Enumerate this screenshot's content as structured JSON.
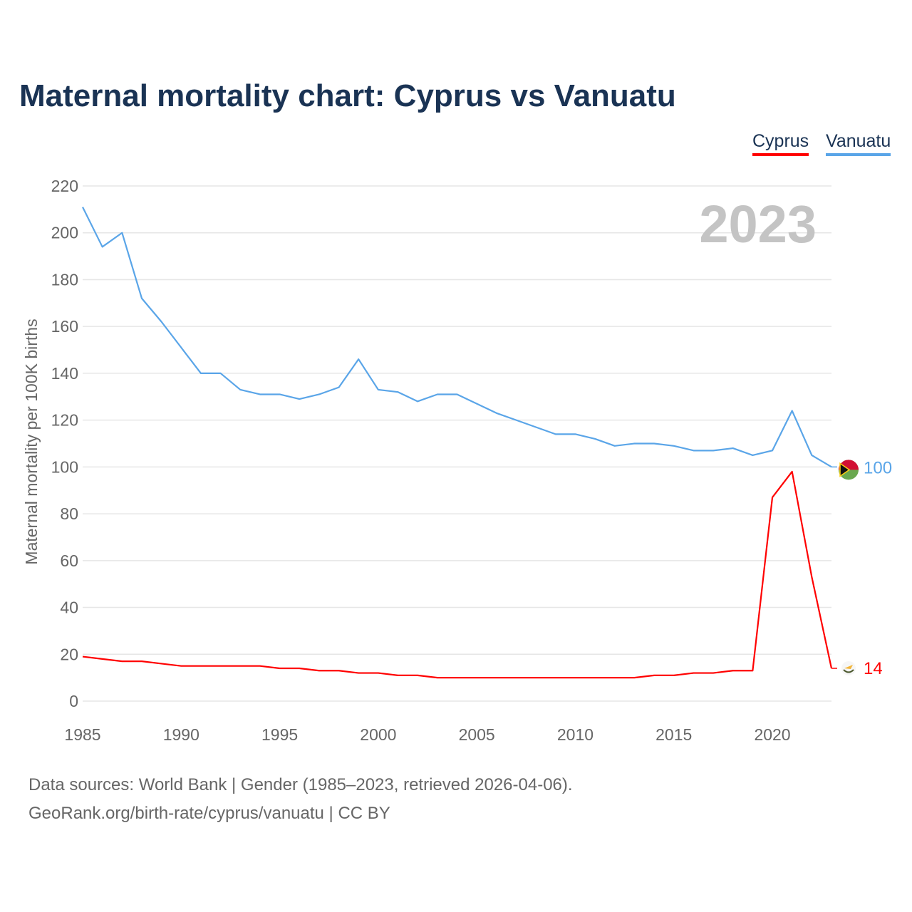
{
  "title": "Maternal mortality chart: Cyprus vs Vanuatu",
  "footer": {
    "line1": "Data sources: World Bank | Gender (1985–2023, retrieved 2026-04-06).",
    "line2": "GeoRank.org/birth-rate/cyprus/vanuatu | CC BY"
  },
  "chart_data": {
    "type": "line",
    "title": "Maternal mortality chart: Cyprus vs Vanuatu",
    "xlabel": "",
    "ylabel": "Maternal mortality per 100K births",
    "year_label": "2023",
    "xlim": [
      1985,
      2023
    ],
    "ylim": [
      0,
      220
    ],
    "xticks": [
      "1985",
      "1990",
      "1995",
      "2000",
      "2005",
      "2010",
      "2015",
      "2020"
    ],
    "yticks": [
      "0",
      "20",
      "40",
      "60",
      "80",
      "100",
      "120",
      "140",
      "160",
      "180",
      "200",
      "220"
    ],
    "grid": true,
    "legend": "top-right",
    "x": [
      1985,
      1986,
      1987,
      1988,
      1989,
      1990,
      1991,
      1992,
      1993,
      1994,
      1995,
      1996,
      1997,
      1998,
      1999,
      2000,
      2001,
      2002,
      2003,
      2004,
      2005,
      2006,
      2007,
      2008,
      2009,
      2010,
      2011,
      2012,
      2013,
      2014,
      2015,
      2016,
      2017,
      2018,
      2019,
      2020,
      2021,
      2022,
      2023
    ],
    "series": [
      {
        "name": "Cyprus",
        "color": "#ff0000",
        "end_label": "14",
        "values": [
          19,
          18,
          17,
          17,
          16,
          15,
          15,
          15,
          15,
          15,
          14,
          14,
          13,
          13,
          12,
          12,
          11,
          11,
          10,
          10,
          10,
          10,
          10,
          10,
          10,
          10,
          10,
          10,
          10,
          11,
          11,
          12,
          12,
          13,
          13,
          87,
          98,
          53,
          14
        ]
      },
      {
        "name": "Vanuatu",
        "color": "#5aa5e8",
        "end_label": "100",
        "values": [
          211,
          194,
          200,
          172,
          162,
          151,
          140,
          140,
          133,
          131,
          131,
          129,
          131,
          134,
          146,
          133,
          132,
          128,
          131,
          131,
          127,
          123,
          120,
          117,
          114,
          114,
          112,
          109,
          110,
          110,
          109,
          107,
          107,
          108,
          105,
          107,
          124,
          105,
          100
        ]
      }
    ]
  }
}
